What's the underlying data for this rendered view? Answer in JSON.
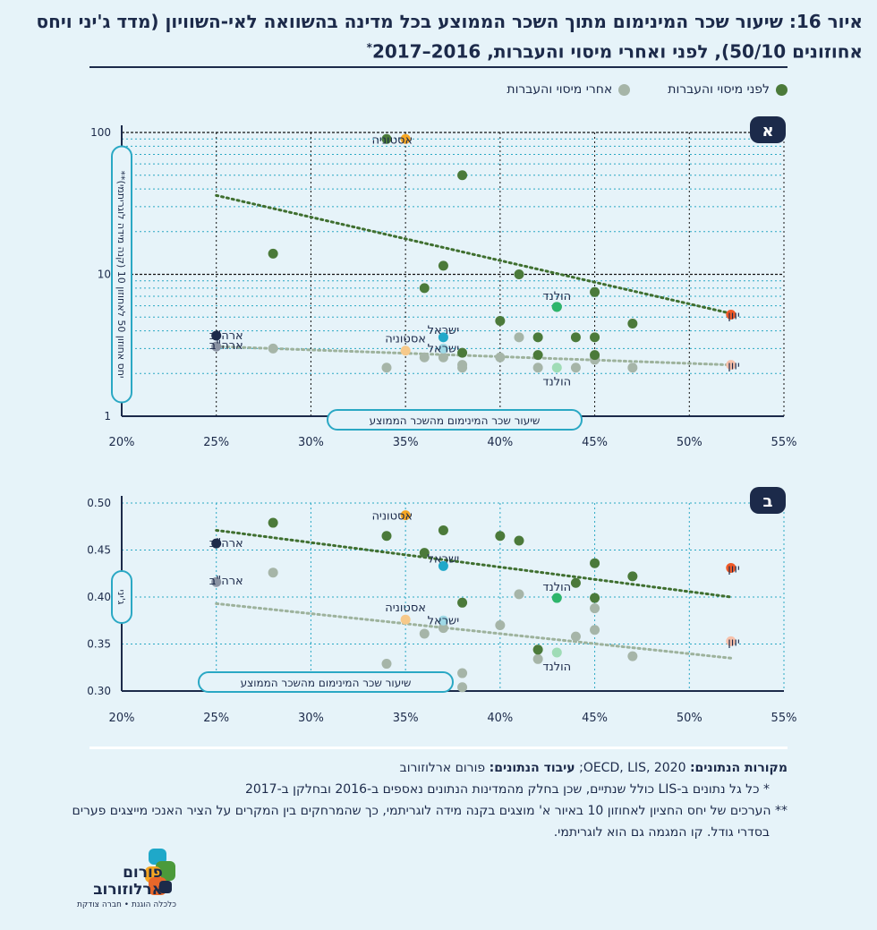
{
  "title": "איור 16: שיעור שכר המינימום מתוך השכר הממוצע בכל מדינה בהשוואה לאי-השוויון (מדד ג'יני ויחס אחוזונים 50/10), לפני ואחרי מיסוי והעברות, 2016–2017",
  "title_mark": "*",
  "legend": {
    "before": "לפני מיסוי והעברות",
    "after": "אחרי מיסוי והעברות"
  },
  "colors": {
    "before": "#4b7a3a",
    "after": "#a6b5a8",
    "axis": "#1c2a4a",
    "grid": "#2aa8c4",
    "badge": "#1c2a4a",
    "trend_before": "#3f6f2f",
    "trend_after": "#9db29c",
    "usa_before": "#1c2a4a",
    "usa_after": "#8a93a3",
    "estonia_before": "#f5a623",
    "estonia_after": "#f6c98a",
    "israel_before": "#1fa8c9",
    "israel_after": "#9fd9e6",
    "netherlands_before": "#2db56b",
    "netherlands_after": "#9fdcb6",
    "greece_before": "#f05a28",
    "greece_after": "#f7c1ab"
  },
  "chart_data": [
    {
      "panel": "א",
      "type": "scatter",
      "yscale": "log",
      "xlim": [
        20,
        55
      ],
      "ylim": [
        1,
        100
      ],
      "xticks": [
        "20%",
        "25%",
        "30%",
        "35%",
        "40%",
        "45%",
        "50%",
        "55%"
      ],
      "yticks": [
        "1",
        "10",
        "100"
      ],
      "xlabel": "שיעור שכר המינימום מהשכר הממוצע",
      "ylabel": "יחס אחוזון 50 לאחוזון 10 (קנה מידה לוגריתמי)**",
      "before": [
        [
          34,
          90
        ],
        [
          38,
          50
        ],
        [
          28,
          14
        ],
        [
          37,
          11.5
        ],
        [
          41,
          10
        ],
        [
          36,
          8
        ],
        [
          45,
          7.5
        ],
        [
          43,
          5.9
        ],
        [
          40,
          4.7
        ],
        [
          47,
          4.5
        ],
        [
          42,
          3.6
        ],
        [
          44,
          3.6
        ],
        [
          45,
          3.6
        ],
        [
          42,
          2.7
        ],
        [
          45,
          2.7
        ],
        [
          38,
          2.8
        ]
      ],
      "after": [
        [
          28,
          3
        ],
        [
          34,
          2.2
        ],
        [
          36,
          2.6
        ],
        [
          37,
          2.6
        ],
        [
          38,
          2.3
        ],
        [
          38,
          2.2
        ],
        [
          40,
          2.6
        ],
        [
          41,
          3.6
        ],
        [
          42,
          2.2
        ],
        [
          44,
          2.2
        ],
        [
          45,
          2.6
        ],
        [
          45,
          2.5
        ],
        [
          47,
          2.2
        ]
      ],
      "trend_before": [
        [
          25,
          36
        ],
        [
          52.2,
          5.3
        ]
      ],
      "trend_after": [
        [
          25,
          3.1
        ],
        [
          52.2,
          2.3
        ]
      ],
      "highlights": [
        {
          "country": "ארה\"ב",
          "series": "before",
          "x": 25,
          "y": 3.7,
          "color": "usa_before"
        },
        {
          "country": "ארה\"ב",
          "series": "after",
          "x": 25,
          "y": 3.1,
          "color": "usa_after"
        },
        {
          "country": "אסטוניה",
          "series": "before",
          "x": 35,
          "y": 90,
          "color": "estonia_before"
        },
        {
          "country": "אסטוניה",
          "series": "after",
          "x": 35,
          "y": 2.9,
          "color": "estonia_after"
        },
        {
          "country": "ישראל",
          "series": "before",
          "x": 37,
          "y": 3.6,
          "color": "israel_before"
        },
        {
          "country": "ישראל",
          "series": "after",
          "x": 37,
          "y": 3.0,
          "color": "israel_after"
        },
        {
          "country": "הולנד",
          "series": "before",
          "x": 43,
          "y": 5.9,
          "color": "netherlands_before"
        },
        {
          "country": "הולנד",
          "series": "after",
          "x": 43,
          "y": 2.2,
          "color": "netherlands_after"
        },
        {
          "country": "יוון",
          "series": "before",
          "x": 52.2,
          "y": 5.2,
          "color": "greece_before"
        },
        {
          "country": "יוון",
          "series": "after",
          "x": 52.2,
          "y": 2.3,
          "color": "greece_after"
        }
      ]
    },
    {
      "panel": "ב",
      "type": "scatter",
      "yscale": "linear",
      "xlim": [
        20,
        55
      ],
      "ylim": [
        0.3,
        0.5
      ],
      "xticks": [
        "20%",
        "25%",
        "30%",
        "35%",
        "40%",
        "45%",
        "50%",
        "55%"
      ],
      "yticks": [
        "0.30",
        "0.35",
        "0.40",
        "0.45",
        "0.50"
      ],
      "xlabel": "שיעור שכר המינימום מהשכר הממוצע",
      "ylabel": "ג'יני",
      "before": [
        [
          28,
          0.479
        ],
        [
          34,
          0.465
        ],
        [
          36,
          0.447
        ],
        [
          37,
          0.471
        ],
        [
          38,
          0.394
        ],
        [
          40,
          0.465
        ],
        [
          41,
          0.46
        ],
        [
          42,
          0.344
        ],
        [
          44,
          0.415
        ],
        [
          45,
          0.436
        ],
        [
          45,
          0.399
        ],
        [
          47,
          0.422
        ]
      ],
      "after": [
        [
          28,
          0.426
        ],
        [
          34,
          0.329
        ],
        [
          36,
          0.361
        ],
        [
          37,
          0.367
        ],
        [
          38,
          0.319
        ],
        [
          38,
          0.304
        ],
        [
          40,
          0.37
        ],
        [
          41,
          0.403
        ],
        [
          42,
          0.334
        ],
        [
          44,
          0.358
        ],
        [
          45,
          0.388
        ],
        [
          45,
          0.365
        ],
        [
          47,
          0.337
        ]
      ],
      "trend_before": [
        [
          25,
          0.471
        ],
        [
          52.2,
          0.4
        ]
      ],
      "trend_after": [
        [
          25,
          0.393
        ],
        [
          52.2,
          0.335
        ]
      ],
      "highlights": [
        {
          "country": "ארה\"ב",
          "series": "before",
          "x": 25,
          "y": 0.457,
          "color": "usa_before"
        },
        {
          "country": "ארה\"ב",
          "series": "after",
          "x": 25,
          "y": 0.416,
          "color": "usa_after"
        },
        {
          "country": "אסטוניה",
          "series": "before",
          "x": 35,
          "y": 0.487,
          "color": "estonia_before"
        },
        {
          "country": "אסטוניה",
          "series": "after",
          "x": 35,
          "y": 0.376,
          "color": "estonia_after"
        },
        {
          "country": "ישראל",
          "series": "before",
          "x": 37,
          "y": 0.433,
          "color": "israel_before"
        },
        {
          "country": "ישראל",
          "series": "after",
          "x": 37,
          "y": 0.375,
          "color": "israel_after"
        },
        {
          "country": "הולנד",
          "series": "before",
          "x": 43,
          "y": 0.399,
          "color": "netherlands_before"
        },
        {
          "country": "הולנד",
          "series": "after",
          "x": 43,
          "y": 0.341,
          "color": "netherlands_after"
        },
        {
          "country": "יוון",
          "series": "before",
          "x": 52.2,
          "y": 0.431,
          "color": "greece_before"
        },
        {
          "country": "יוון",
          "series": "after",
          "x": 52.2,
          "y": 0.353,
          "color": "greece_after"
        }
      ]
    }
  ],
  "footer": {
    "sources_label": "מקורות הנתונים:",
    "sources_value": "OECD, LIS, 2020",
    "processing_label": "עיבוד הנתונים:",
    "processing_value": "פורום ארלוזורוב",
    "note1": "* כל גל נתונים ב-LIS כולל שנתיים, שכן בחלק מהמדינות הנתונים נאספים ב-2016 ובחלקן ב-2017",
    "note2": "** הערכים של יחס החציון לאחוזון 10 באיור א' מוצגים בקנה מידה לוגריתמי, כך שהמרחקים בין המקרים על הציר האנכי מייצגים פערים בסדרי גודל. קו המגמה גם הוא לוגריתמי."
  },
  "logo": {
    "name": "פורום ארלוזורוב",
    "tagline": "כלכלה הוגנת • חברה צודקת"
  }
}
